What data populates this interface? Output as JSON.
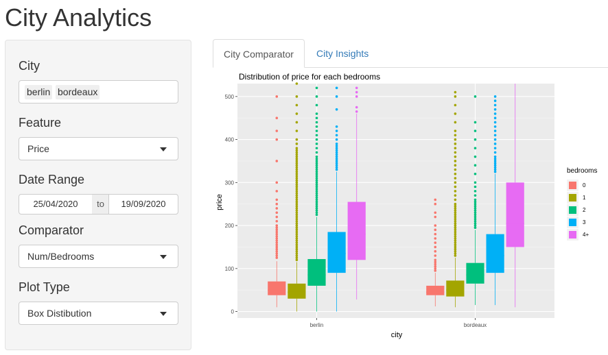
{
  "app": {
    "title": "City Analytics"
  },
  "sidebar": {
    "city": {
      "label": "City",
      "selected": [
        "berlin",
        "bordeaux"
      ]
    },
    "feature": {
      "label": "Feature",
      "value": "Price"
    },
    "date_range": {
      "label": "Date Range",
      "start": "25/04/2020",
      "separator": "to",
      "end": "19/09/2020"
    },
    "comparator": {
      "label": "Comparator",
      "value": "Num/Bedrooms"
    },
    "plot_type": {
      "label": "Plot Type",
      "value": "Box Distibution"
    }
  },
  "tabs": [
    {
      "label": "City Comparator",
      "active": true
    },
    {
      "label": "City Insights",
      "active": false
    }
  ],
  "chart_data": {
    "type": "box",
    "title": "Distribution of price for each bedrooms",
    "xlabel": "city",
    "ylabel": "price",
    "ylim": [
      -15,
      530
    ],
    "yticks": [
      0,
      100,
      200,
      300,
      400,
      500
    ],
    "grid": true,
    "legend": {
      "title": "bedrooms",
      "position": "right"
    },
    "categories": [
      "berlin",
      "bordeaux"
    ],
    "series": [
      {
        "name": "0",
        "color": "#F8766D",
        "boxes": [
          {
            "min": 10,
            "q1": 38,
            "median": 50,
            "q3": 70,
            "max": 117,
            "outliers": [
              125,
              130,
              135,
              140,
              145,
              150,
              155,
              160,
              165,
              170,
              175,
              180,
              185,
              190,
              195,
              200,
              210,
              220,
              230,
              240,
              250,
              260,
              280,
              300,
              350,
              400,
              420,
              450,
              500
            ]
          },
          {
            "min": 12,
            "q1": 38,
            "median": 45,
            "q3": 60,
            "max": 90,
            "outliers": [
              95,
              100,
              105,
              110,
              115,
              120,
              130,
              140,
              150,
              160,
              170,
              180,
              190,
              200,
              220,
              230,
              250,
              260
            ]
          }
        ]
      },
      {
        "name": "1",
        "color": "#A3A500",
        "boxes": [
          {
            "min": 0,
            "q1": 30,
            "median": 45,
            "q3": 65,
            "max": 115,
            "outliers": [
              120,
              125,
              130,
              135,
              140,
              145,
              150,
              155,
              160,
              165,
              170,
              175,
              180,
              185,
              190,
              195,
              200,
              205,
              210,
              215,
              220,
              225,
              230,
              235,
              240,
              245,
              250,
              255,
              260,
              265,
              270,
              275,
              280,
              285,
              290,
              295,
              300,
              305,
              310,
              315,
              320,
              325,
              330,
              335,
              340,
              345,
              350,
              355,
              360,
              365,
              370,
              375,
              380,
              390,
              400,
              420,
              440,
              460,
              480,
              500,
              530
            ]
          },
          {
            "min": 10,
            "q1": 35,
            "median": 50,
            "q3": 72,
            "max": 125,
            "outliers": [
              130,
              135,
              140,
              145,
              150,
              155,
              160,
              165,
              170,
              175,
              180,
              185,
              190,
              195,
              200,
              205,
              210,
              215,
              220,
              225,
              230,
              235,
              240,
              245,
              250,
              260,
              270,
              280,
              290,
              300,
              310,
              320,
              330,
              340,
              350,
              360,
              370,
              380,
              390,
              400,
              410,
              420,
              440,
              460,
              480,
              500,
              510
            ]
          }
        ]
      },
      {
        "name": "2",
        "color": "#00BF7D",
        "boxes": [
          {
            "min": 0,
            "q1": 60,
            "median": 85,
            "q3": 122,
            "max": 220,
            "outliers": [
              225,
              230,
              235,
              240,
              245,
              250,
              255,
              260,
              265,
              270,
              275,
              280,
              285,
              290,
              295,
              300,
              305,
              310,
              315,
              320,
              325,
              330,
              335,
              340,
              345,
              350,
              355,
              360,
              370,
              380,
              390,
              400,
              410,
              420,
              430,
              440,
              450,
              460,
              480,
              500,
              520
            ]
          },
          {
            "min": 15,
            "q1": 65,
            "median": 85,
            "q3": 113,
            "max": 190,
            "outliers": [
              195,
              200,
              205,
              210,
              215,
              220,
              225,
              230,
              235,
              240,
              245,
              250,
              255,
              260,
              270,
              280,
              290,
              300,
              320,
              340,
              360,
              380,
              400,
              420,
              440,
              500
            ]
          }
        ]
      },
      {
        "name": "3",
        "color": "#00B0F6",
        "boxes": [
          {
            "min": 0,
            "q1": 90,
            "median": 135,
            "q3": 185,
            "max": 325,
            "outliers": [
              330,
              335,
              340,
              345,
              350,
              355,
              360,
              365,
              370,
              375,
              380,
              385,
              390,
              400,
              410,
              420,
              430,
              470,
              500,
              520
            ]
          },
          {
            "min": 15,
            "q1": 90,
            "median": 130,
            "q3": 180,
            "max": 320,
            "outliers": [
              325,
              330,
              335,
              340,
              345,
              350,
              355,
              360,
              370,
              380,
              390,
              400,
              410,
              420,
              430,
              440,
              450,
              460,
              470,
              480,
              490,
              500
            ]
          }
        ]
      },
      {
        "name": "4+",
        "color": "#E76BF3",
        "boxes": [
          {
            "min": 28,
            "q1": 120,
            "median": 180,
            "q3": 255,
            "max": 460,
            "outliers": [
              465,
              475,
              500,
              510,
              520
            ]
          },
          {
            "min": 10,
            "q1": 150,
            "median": 205,
            "q3": 300,
            "max": 530,
            "outliers": []
          }
        ]
      }
    ]
  }
}
